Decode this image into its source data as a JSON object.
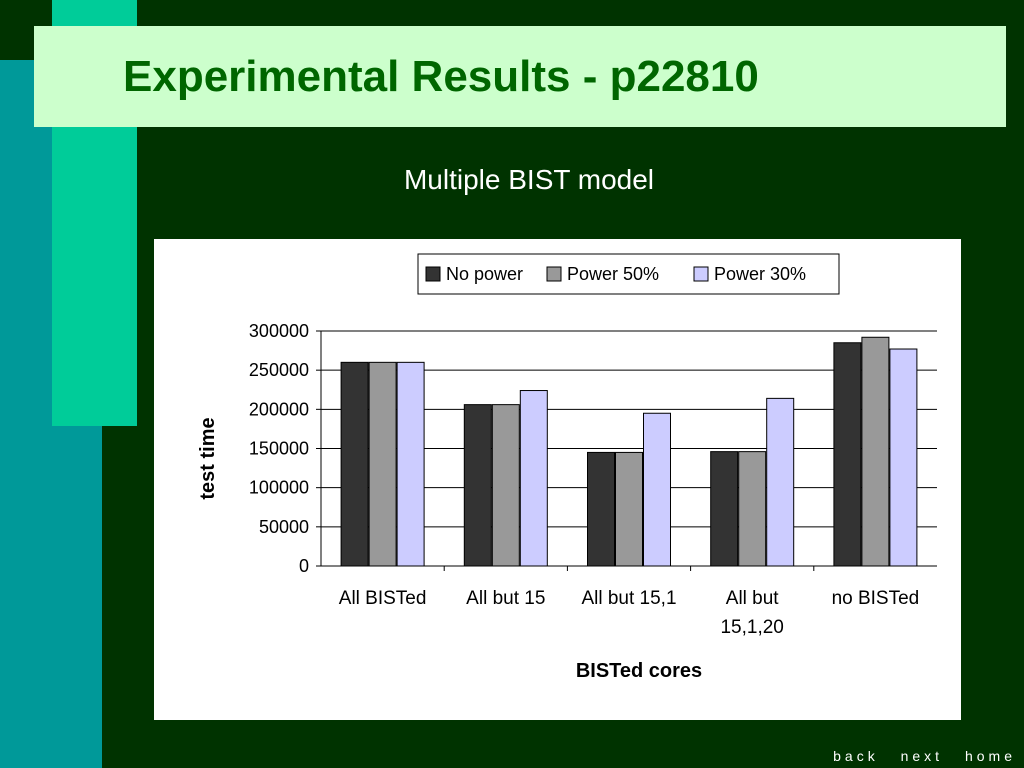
{
  "slide": {
    "title": "Experimental Results - p22810",
    "subtitle": "Multiple BIST model"
  },
  "nav": {
    "back": "back",
    "next": "next",
    "home": "home"
  },
  "colors": {
    "background": "#003300",
    "title_bar": "#CCFFCC",
    "title_text": "#006600",
    "deco_teal": "#009999",
    "deco_green": "#00CC99"
  },
  "chart_data": {
    "type": "bar",
    "categories": [
      [
        "All BISTed"
      ],
      [
        "All but 15"
      ],
      [
        "All but 15,1"
      ],
      [
        "All but",
        "15,1,20"
      ],
      [
        "no BISTed"
      ]
    ],
    "series": [
      {
        "name": "No power",
        "color": "#333333",
        "values": [
          260000,
          206000,
          145000,
          146000,
          285000
        ]
      },
      {
        "name": "Power 50%",
        "color": "#999999",
        "values": [
          260000,
          206000,
          145000,
          146000,
          292000
        ]
      },
      {
        "name": "Power 30%",
        "color": "#CCCCFF",
        "values": [
          260000,
          224000,
          195000,
          214000,
          277000
        ]
      }
    ],
    "xlabel": "BISTed cores",
    "ylabel": "test time",
    "ylim": [
      0,
      300000
    ],
    "yticks": [
      0,
      50000,
      100000,
      150000,
      200000,
      250000,
      300000
    ],
    "grid": true,
    "legend_position": "top"
  }
}
